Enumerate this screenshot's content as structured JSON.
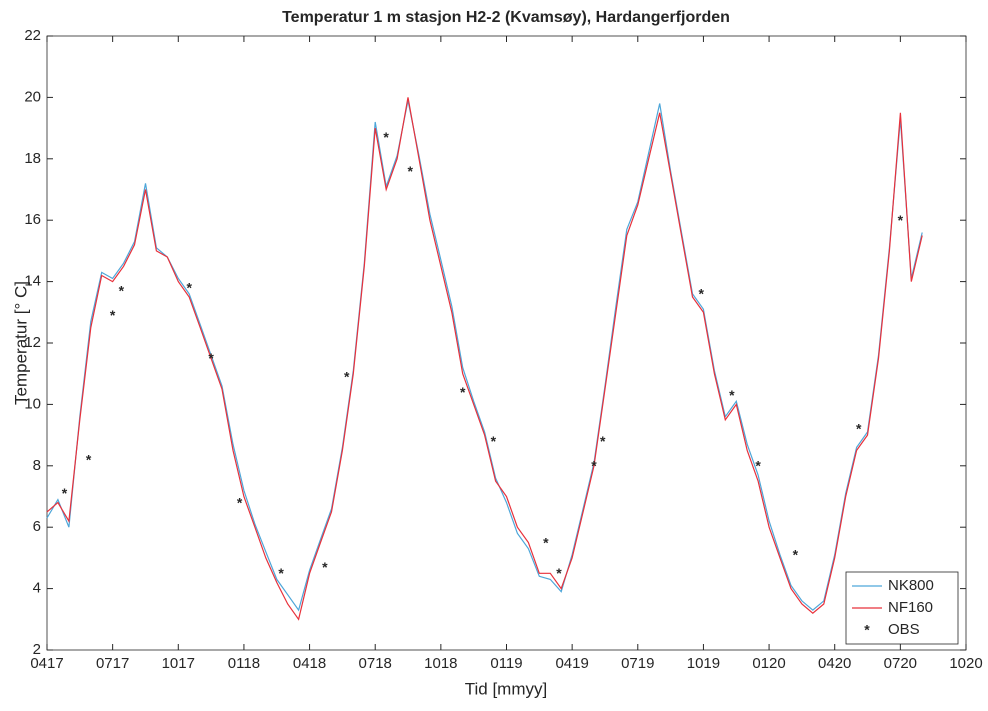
{
  "chart_data": {
    "type": "line",
    "title": "Temperatur 1 m stasjon H2-2 (Kvamsøy), Hardangerfjorden",
    "xlabel": "Tid [mmyy]",
    "ylabel": "Temperatur [° C]",
    "xlim": [
      0,
      42
    ],
    "xticks": [
      {
        "value": 0,
        "label": "0417"
      },
      {
        "value": 3,
        "label": "0717"
      },
      {
        "value": 6,
        "label": "1017"
      },
      {
        "value": 9,
        "label": "0118"
      },
      {
        "value": 12,
        "label": "0418"
      },
      {
        "value": 15,
        "label": "0718"
      },
      {
        "value": 18,
        "label": "1018"
      },
      {
        "value": 21,
        "label": "0119"
      },
      {
        "value": 24,
        "label": "0419"
      },
      {
        "value": 27,
        "label": "0719"
      },
      {
        "value": 30,
        "label": "1019"
      },
      {
        "value": 33,
        "label": "0120"
      },
      {
        "value": 36,
        "label": "0420"
      },
      {
        "value": 39,
        "label": "0720"
      },
      {
        "value": 42,
        "label": "1020"
      }
    ],
    "ylim": [
      2,
      22
    ],
    "yticks": [
      2,
      4,
      6,
      8,
      10,
      12,
      14,
      16,
      18,
      20,
      22
    ],
    "legend": "lower right",
    "x": [
      0,
      0.5,
      1,
      1.5,
      2,
      2.5,
      3,
      3.5,
      4,
      4.5,
      5,
      5.5,
      6,
      6.5,
      7,
      7.5,
      8,
      8.5,
      9,
      9.5,
      10,
      10.5,
      11,
      11.5,
      12,
      12.5,
      13,
      13.5,
      14,
      14.5,
      15,
      15.5,
      16,
      16.5,
      17,
      17.5,
      18,
      18.5,
      19,
      19.5,
      20,
      20.5,
      21,
      21.5,
      22,
      22.5,
      23,
      23.5,
      24,
      24.5,
      25,
      25.5,
      26,
      26.5,
      27,
      27.5,
      28,
      28.5,
      29,
      29.5,
      30,
      30.5,
      31,
      31.5,
      32,
      32.5,
      33,
      33.5,
      34,
      34.5,
      35,
      35.5,
      36,
      36.5,
      37,
      37.5,
      38,
      38.5,
      39,
      39.5,
      40
    ],
    "series": [
      {
        "name": "NK800",
        "color": "#4da6d9",
        "values": [
          6.3,
          6.9,
          6.0,
          9.6,
          12.7,
          14.3,
          14.1,
          14.6,
          15.3,
          17.2,
          15.1,
          14.8,
          14.1,
          13.6,
          12.6,
          11.6,
          10.6,
          8.7,
          7.2,
          6.1,
          5.2,
          4.3,
          3.8,
          3.3,
          4.6,
          5.6,
          6.6,
          8.6,
          11.1,
          14.6,
          19.2,
          17.1,
          18.1,
          19.9,
          18.1,
          16.2,
          14.7,
          13.2,
          11.2,
          10.1,
          9.1,
          7.6,
          6.8,
          5.8,
          5.3,
          4.4,
          4.3,
          3.9,
          5.1,
          6.6,
          8.1,
          10.6,
          13.2,
          15.7,
          16.6,
          18.2,
          19.8,
          17.6,
          15.6,
          13.6,
          13.1,
          11.1,
          9.6,
          10.1,
          8.7,
          7.7,
          6.2,
          5.1,
          4.1,
          3.6,
          3.3,
          3.6,
          5.1,
          7.1,
          8.6,
          9.1,
          11.6,
          15.1,
          19.3,
          14.1,
          15.6
        ]
      },
      {
        "name": "NF160",
        "color": "#e8313b",
        "values": [
          6.5,
          6.8,
          6.2,
          9.5,
          12.5,
          14.2,
          14.0,
          14.5,
          15.2,
          17.0,
          15.0,
          14.8,
          14.0,
          13.5,
          12.5,
          11.5,
          10.5,
          8.5,
          7.0,
          6.0,
          5.0,
          4.2,
          3.5,
          3.0,
          4.5,
          5.5,
          6.5,
          8.5,
          11.0,
          14.5,
          19.0,
          17.0,
          18.0,
          20.0,
          18.0,
          16.0,
          14.5,
          13.0,
          11.0,
          10.0,
          9.0,
          7.5,
          7.0,
          6.0,
          5.5,
          4.5,
          4.5,
          4.0,
          5.0,
          6.5,
          8.0,
          10.5,
          13.0,
          15.5,
          16.5,
          18.0,
          19.5,
          17.5,
          15.5,
          13.5,
          13.0,
          11.0,
          9.5,
          10.0,
          8.5,
          7.5,
          6.0,
          5.0,
          4.0,
          3.5,
          3.2,
          3.5,
          5.0,
          7.0,
          8.5,
          9.0,
          11.5,
          15.0,
          19.5,
          14.0,
          15.5
        ]
      }
    ],
    "obs": {
      "name": "OBS",
      "color": "#333333",
      "x": [
        0.8,
        1.9,
        3.0,
        3.4,
        6.5,
        7.5,
        8.8,
        10.7,
        12.7,
        13.7,
        15.5,
        16.6,
        19.0,
        20.4,
        22.8,
        23.4,
        25.0,
        25.4,
        29.9,
        31.3,
        32.5,
        34.2,
        37.1,
        39.0
      ],
      "values": [
        7.1,
        8.2,
        12.9,
        13.7,
        13.8,
        11.5,
        6.8,
        4.5,
        4.7,
        10.9,
        18.7,
        17.6,
        10.4,
        8.8,
        5.5,
        4.5,
        8.0,
        8.8,
        13.6,
        10.3,
        8.0,
        5.1,
        9.2,
        16.0
      ]
    }
  }
}
